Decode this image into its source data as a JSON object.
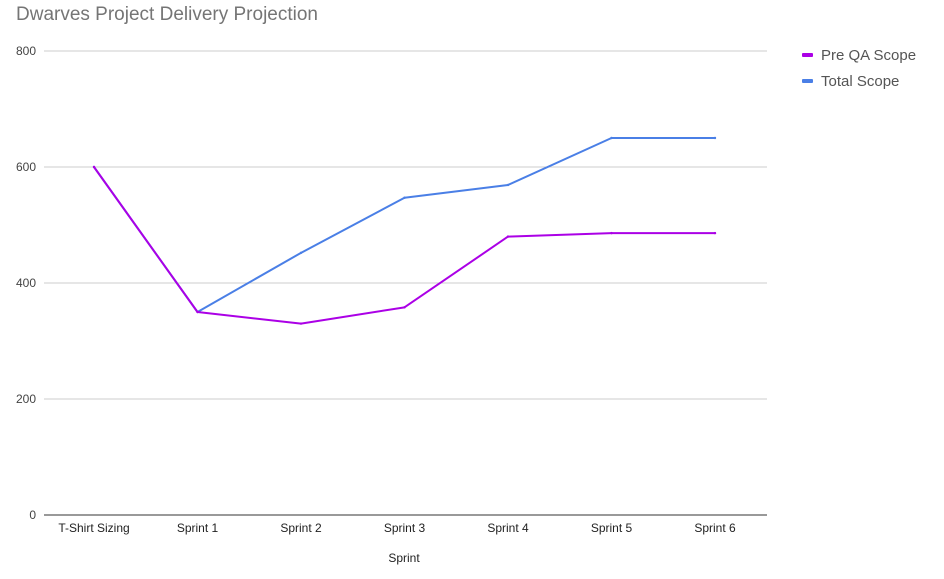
{
  "chart_data": {
    "type": "line",
    "title": "Dwarves Project Delivery Projection",
    "xlabel": "Sprint",
    "ylabel": "",
    "categories": [
      "T-Shirt Sizing",
      "Sprint 1",
      "Sprint 2",
      "Sprint 3",
      "Sprint 4",
      "Sprint 5",
      "Sprint 6"
    ],
    "ylim": [
      0,
      800
    ],
    "yticks": [
      0,
      200,
      400,
      600,
      800
    ],
    "grid": true,
    "legend_position": "right",
    "series": [
      {
        "name": "Pre QA Scope",
        "color": "#ab00e6",
        "values": [
          600,
          350,
          330,
          358,
          480,
          486,
          486
        ]
      },
      {
        "name": "Total Scope",
        "color": "#4a7fe6",
        "values": [
          600,
          350,
          452,
          547,
          569,
          650,
          650
        ]
      }
    ]
  }
}
